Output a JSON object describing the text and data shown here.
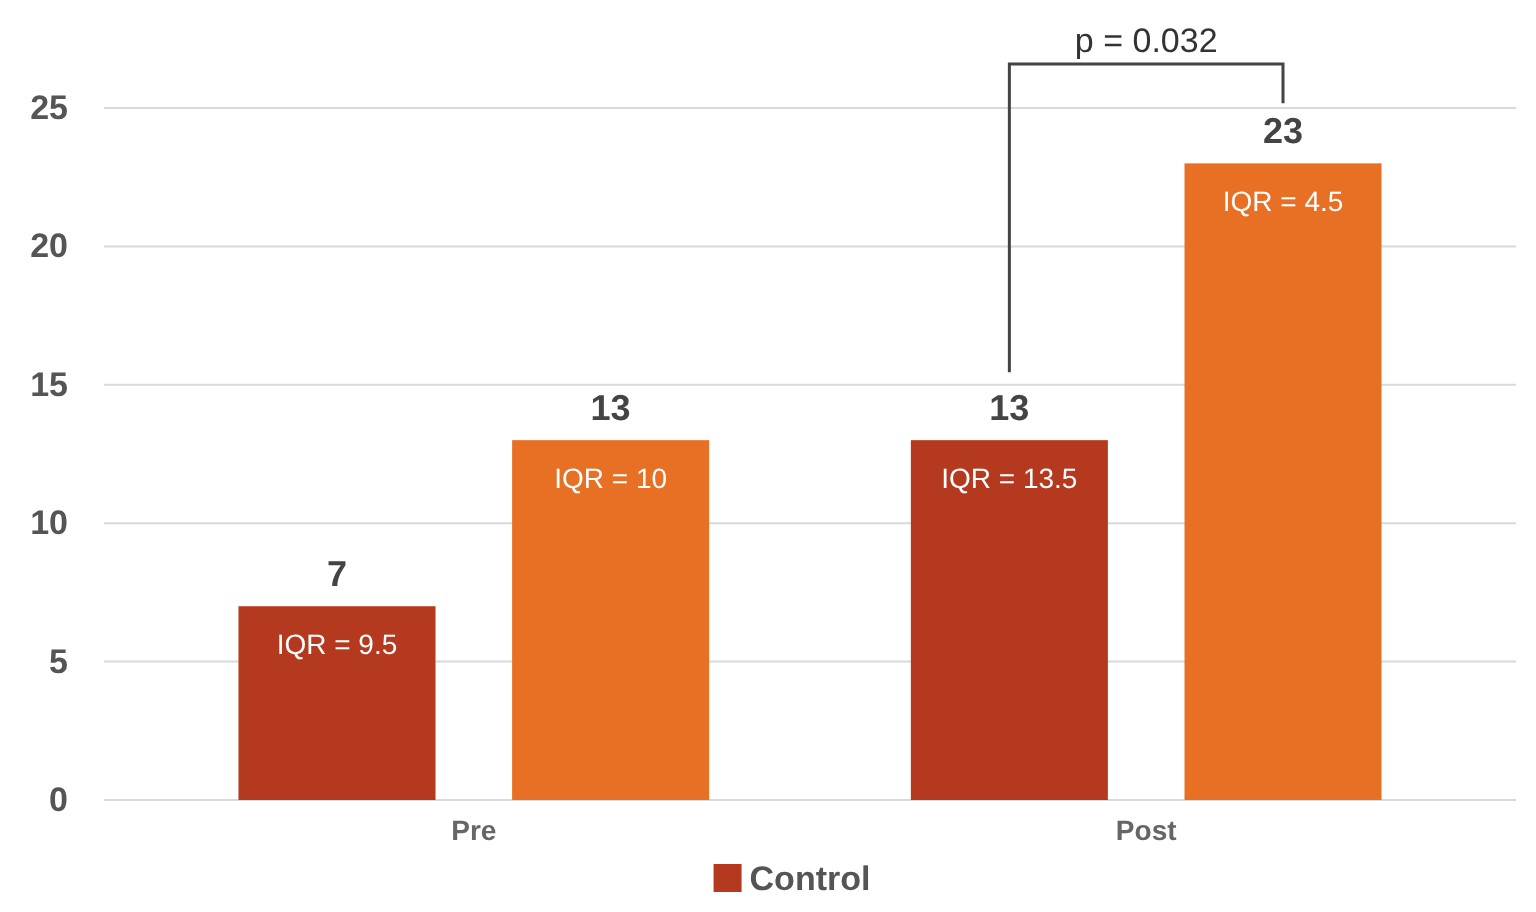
{
  "chart_data": {
    "type": "bar",
    "categories": [
      "Pre",
      "Post"
    ],
    "series": [
      {
        "name": "Control",
        "color": "#b5391f",
        "values": [
          7,
          13
        ]
      },
      {
        "color": "#e87025",
        "values": [
          13,
          23
        ]
      }
    ],
    "ylim": [
      0,
      25
    ],
    "yticks": [
      0,
      5,
      10,
      15,
      20,
      25
    ],
    "grid": "y",
    "legend": "bottom",
    "data_labels": true,
    "annotations": [
      "IQR = 9.5",
      "IQR = 10",
      "IQR = 13.5",
      "IQR = 4.5",
      "p = 0.032"
    ]
  }
}
